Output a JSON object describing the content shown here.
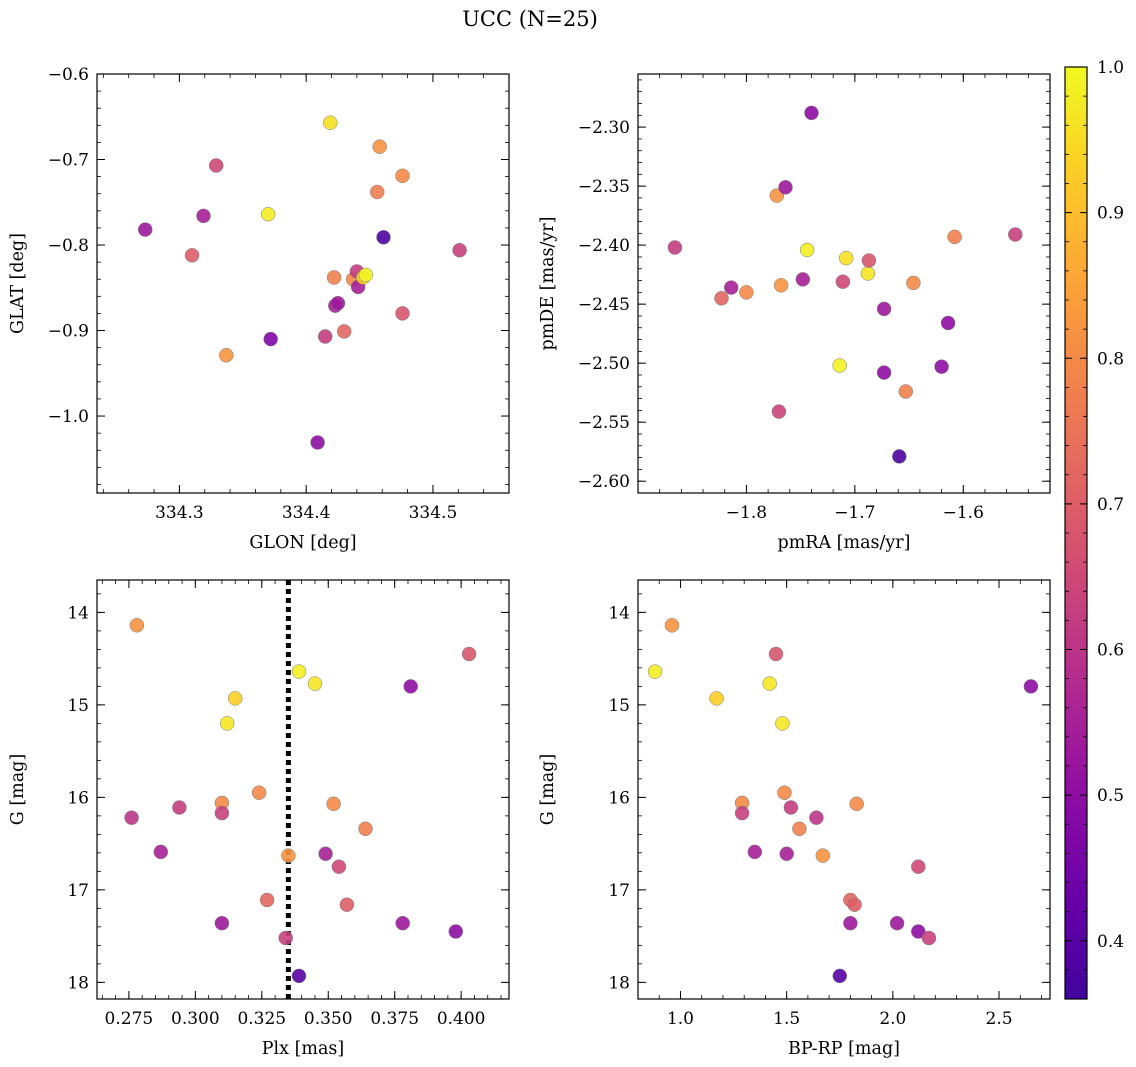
{
  "title": "UCC (N=25)",
  "colorbar": {
    "range": [
      0.36,
      1.0
    ],
    "ticks": [
      0.4,
      0.5,
      0.6,
      0.7,
      0.8,
      0.9,
      1.0
    ],
    "tick_labels": [
      "0.4",
      "0.5",
      "0.6",
      "0.7",
      "0.8",
      "0.9",
      "1.0"
    ],
    "colormap": "plasma"
  },
  "chart_data": [
    {
      "type": "scatter",
      "xlabel": "GLON [deg]",
      "ylabel": "GLAT [deg]",
      "xlim": [
        334.235,
        334.56
      ],
      "ylim": [
        -1.09,
        -0.6
      ],
      "invert_y": false,
      "xticks": [
        334.3,
        334.4,
        334.5
      ],
      "xtick_labels": [
        "334.3",
        "334.4",
        "334.5"
      ],
      "yticks": [
        -1.0,
        -0.9,
        -0.8,
        -0.7,
        -0.6
      ],
      "ytick_labels": [
        "−1.0",
        "−0.9",
        "−0.8",
        "−0.7",
        "−0.6"
      ],
      "points": [
        {
          "x": 334.273,
          "y": -0.782,
          "c": 0.53
        },
        {
          "x": 334.31,
          "y": -0.812,
          "c": 0.7
        },
        {
          "x": 334.319,
          "y": -0.766,
          "c": 0.55
        },
        {
          "x": 334.329,
          "y": -0.707,
          "c": 0.65
        },
        {
          "x": 334.337,
          "y": -0.929,
          "c": 0.82
        },
        {
          "x": 334.37,
          "y": -0.764,
          "c": 0.98
        },
        {
          "x": 334.372,
          "y": -0.91,
          "c": 0.47
        },
        {
          "x": 334.409,
          "y": -1.031,
          "c": 0.5
        },
        {
          "x": 334.415,
          "y": -0.907,
          "c": 0.62
        },
        {
          "x": 334.419,
          "y": -0.657,
          "c": 0.96
        },
        {
          "x": 334.422,
          "y": -0.838,
          "c": 0.78
        },
        {
          "x": 334.423,
          "y": -0.871,
          "c": 0.55
        },
        {
          "x": 334.425,
          "y": -0.868,
          "c": 0.53
        },
        {
          "x": 334.43,
          "y": -0.901,
          "c": 0.72
        },
        {
          "x": 334.437,
          "y": -0.84,
          "c": 0.8
        },
        {
          "x": 334.44,
          "y": -0.831,
          "c": 0.62
        },
        {
          "x": 334.441,
          "y": -0.849,
          "c": 0.55
        },
        {
          "x": 334.445,
          "y": -0.838,
          "c": 0.93
        },
        {
          "x": 334.447,
          "y": -0.835,
          "c": 0.99
        },
        {
          "x": 334.456,
          "y": -0.738,
          "c": 0.77
        },
        {
          "x": 334.458,
          "y": -0.685,
          "c": 0.82
        },
        {
          "x": 334.461,
          "y": -0.791,
          "c": 0.38
        },
        {
          "x": 334.476,
          "y": -0.719,
          "c": 0.8
        },
        {
          "x": 334.476,
          "y": -0.88,
          "c": 0.68
        },
        {
          "x": 334.521,
          "y": -0.806,
          "c": 0.63
        }
      ]
    },
    {
      "type": "scatter",
      "xlabel": "pmRA [mas/yr]",
      "ylabel": "pmDE [mas/yr]",
      "xlim": [
        -1.9,
        -1.52
      ],
      "ylim": [
        -2.61,
        -2.255
      ],
      "invert_y": false,
      "xticks": [
        -1.8,
        -1.7,
        -1.6
      ],
      "xtick_labels": [
        "−1.8",
        "−1.7",
        "−1.6"
      ],
      "yticks": [
        -2.6,
        -2.55,
        -2.5,
        -2.45,
        -2.4,
        -2.35,
        -2.3
      ],
      "ytick_labels": [
        "−2.60",
        "−2.55",
        "−2.50",
        "−2.45",
        "−2.40",
        "−2.35",
        "−2.30"
      ],
      "points": [
        {
          "x": -1.866,
          "y": -2.402,
          "c": 0.62
        },
        {
          "x": -1.823,
          "y": -2.445,
          "c": 0.72
        },
        {
          "x": -1.814,
          "y": -2.436,
          "c": 0.55
        },
        {
          "x": -1.8,
          "y": -2.44,
          "c": 0.8
        },
        {
          "x": -1.772,
          "y": -2.358,
          "c": 0.82
        },
        {
          "x": -1.77,
          "y": -2.541,
          "c": 0.64
        },
        {
          "x": -1.768,
          "y": -2.434,
          "c": 0.82
        },
        {
          "x": -1.764,
          "y": -2.351,
          "c": 0.53
        },
        {
          "x": -1.748,
          "y": -2.429,
          "c": 0.55
        },
        {
          "x": -1.744,
          "y": -2.404,
          "c": 0.98
        },
        {
          "x": -1.74,
          "y": -2.288,
          "c": 0.5
        },
        {
          "x": -1.714,
          "y": -2.502,
          "c": 0.99
        },
        {
          "x": -1.711,
          "y": -2.431,
          "c": 0.65
        },
        {
          "x": -1.708,
          "y": -2.411,
          "c": 0.96
        },
        {
          "x": -1.688,
          "y": -2.424,
          "c": 0.97
        },
        {
          "x": -1.687,
          "y": -2.413,
          "c": 0.68
        },
        {
          "x": -1.673,
          "y": -2.454,
          "c": 0.53
        },
        {
          "x": -1.673,
          "y": -2.508,
          "c": 0.5
        },
        {
          "x": -1.659,
          "y": -2.579,
          "c": 0.38
        },
        {
          "x": -1.653,
          "y": -2.524,
          "c": 0.78
        },
        {
          "x": -1.646,
          "y": -2.432,
          "c": 0.8
        },
        {
          "x": -1.62,
          "y": -2.503,
          "c": 0.5
        },
        {
          "x": -1.614,
          "y": -2.466,
          "c": 0.5
        },
        {
          "x": -1.608,
          "y": -2.393,
          "c": 0.78
        },
        {
          "x": -1.552,
          "y": -2.391,
          "c": 0.63
        }
      ]
    },
    {
      "type": "scatter",
      "xlabel": "Plx [mas]",
      "ylabel": "G [mag]",
      "xlim": [
        0.263,
        0.418
      ],
      "ylim": [
        13.65,
        18.18
      ],
      "invert_y": true,
      "xticks": [
        0.275,
        0.3,
        0.325,
        0.35,
        0.375,
        0.4
      ],
      "xtick_labels": [
        "0.275",
        "0.300",
        "0.325",
        "0.350",
        "0.375",
        "0.400"
      ],
      "yticks": [
        14,
        15,
        16,
        17,
        18
      ],
      "ytick_labels": [
        "14",
        "15",
        "16",
        "17",
        "18"
      ],
      "vline": {
        "x": 0.335,
        "style": "dotted"
      },
      "points": [
        {
          "x": 0.276,
          "y": 16.22,
          "c": 0.6
        },
        {
          "x": 0.278,
          "y": 14.14,
          "c": 0.82
        },
        {
          "x": 0.287,
          "y": 16.59,
          "c": 0.55
        },
        {
          "x": 0.294,
          "y": 16.11,
          "c": 0.62
        },
        {
          "x": 0.31,
          "y": 16.06,
          "c": 0.8
        },
        {
          "x": 0.31,
          "y": 16.17,
          "c": 0.63
        },
        {
          "x": 0.31,
          "y": 17.36,
          "c": 0.53
        },
        {
          "x": 0.312,
          "y": 15.2,
          "c": 0.97
        },
        {
          "x": 0.315,
          "y": 14.93,
          "c": 0.93
        },
        {
          "x": 0.324,
          "y": 15.95,
          "c": 0.8
        },
        {
          "x": 0.327,
          "y": 17.11,
          "c": 0.72
        },
        {
          "x": 0.334,
          "y": 17.52,
          "c": 0.63
        },
        {
          "x": 0.335,
          "y": 16.63,
          "c": 0.82
        },
        {
          "x": 0.339,
          "y": 14.64,
          "c": 0.98
        },
        {
          "x": 0.339,
          "y": 17.93,
          "c": 0.4
        },
        {
          "x": 0.345,
          "y": 14.77,
          "c": 0.97
        },
        {
          "x": 0.349,
          "y": 16.61,
          "c": 0.55
        },
        {
          "x": 0.352,
          "y": 16.07,
          "c": 0.8
        },
        {
          "x": 0.354,
          "y": 16.75,
          "c": 0.65
        },
        {
          "x": 0.357,
          "y": 17.16,
          "c": 0.7
        },
        {
          "x": 0.364,
          "y": 16.34,
          "c": 0.78
        },
        {
          "x": 0.378,
          "y": 17.36,
          "c": 0.53
        },
        {
          "x": 0.381,
          "y": 14.8,
          "c": 0.5
        },
        {
          "x": 0.398,
          "y": 17.45,
          "c": 0.5
        },
        {
          "x": 0.403,
          "y": 14.45,
          "c": 0.68
        }
      ]
    },
    {
      "type": "scatter",
      "xlabel": "BP-RP [mag]",
      "ylabel": "G [mag]",
      "xlim": [
        0.8,
        2.74
      ],
      "ylim": [
        13.65,
        18.18
      ],
      "invert_y": true,
      "xticks": [
        1.0,
        1.5,
        2.0,
        2.5
      ],
      "xtick_labels": [
        "1.0",
        "1.5",
        "2.0",
        "2.5"
      ],
      "yticks": [
        14,
        15,
        16,
        17,
        18
      ],
      "ytick_labels": [
        "14",
        "15",
        "16",
        "17",
        "18"
      ],
      "points": [
        {
          "x": 0.88,
          "y": 14.64,
          "c": 0.98
        },
        {
          "x": 0.96,
          "y": 14.14,
          "c": 0.82
        },
        {
          "x": 1.17,
          "y": 14.93,
          "c": 0.93
        },
        {
          "x": 1.29,
          "y": 16.06,
          "c": 0.8
        },
        {
          "x": 1.29,
          "y": 16.17,
          "c": 0.63
        },
        {
          "x": 1.35,
          "y": 16.59,
          "c": 0.55
        },
        {
          "x": 1.42,
          "y": 14.77,
          "c": 0.97
        },
        {
          "x": 1.45,
          "y": 14.45,
          "c": 0.68
        },
        {
          "x": 1.48,
          "y": 15.2,
          "c": 0.97
        },
        {
          "x": 1.49,
          "y": 15.95,
          "c": 0.8
        },
        {
          "x": 1.5,
          "y": 16.61,
          "c": 0.55
        },
        {
          "x": 1.52,
          "y": 16.11,
          "c": 0.62
        },
        {
          "x": 1.56,
          "y": 16.34,
          "c": 0.78
        },
        {
          "x": 1.64,
          "y": 16.22,
          "c": 0.6
        },
        {
          "x": 1.67,
          "y": 16.63,
          "c": 0.82
        },
        {
          "x": 1.75,
          "y": 17.93,
          "c": 0.4
        },
        {
          "x": 1.8,
          "y": 17.11,
          "c": 0.72
        },
        {
          "x": 1.8,
          "y": 17.36,
          "c": 0.53
        },
        {
          "x": 1.82,
          "y": 17.16,
          "c": 0.7
        },
        {
          "x": 1.83,
          "y": 16.07,
          "c": 0.8
        },
        {
          "x": 2.02,
          "y": 17.36,
          "c": 0.53
        },
        {
          "x": 2.12,
          "y": 16.75,
          "c": 0.65
        },
        {
          "x": 2.12,
          "y": 17.45,
          "c": 0.5
        },
        {
          "x": 2.17,
          "y": 17.52,
          "c": 0.63
        },
        {
          "x": 2.65,
          "y": 14.8,
          "c": 0.5
        }
      ]
    }
  ]
}
